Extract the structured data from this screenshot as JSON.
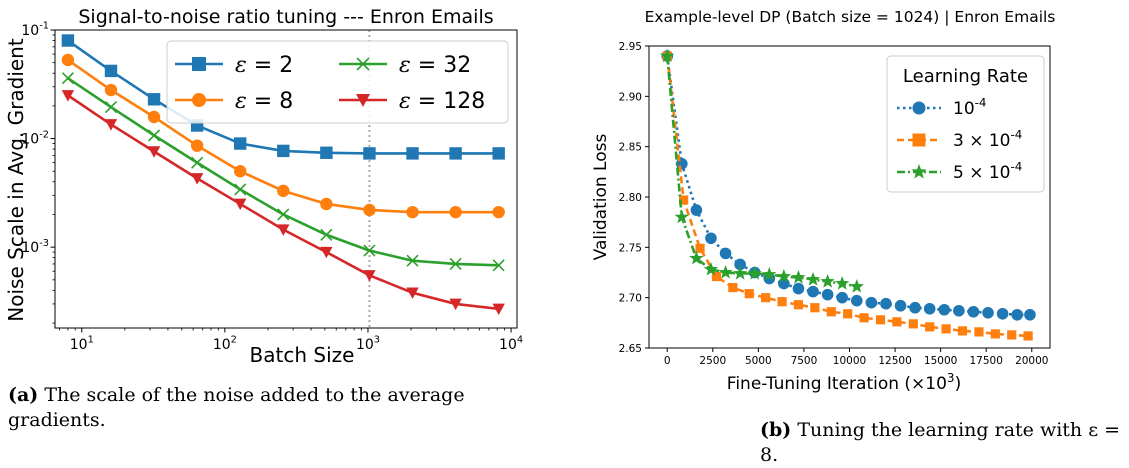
{
  "chart_data": [
    {
      "type": "line",
      "title": "Signal-to-noise ratio tuning --- Enron Emails",
      "xlabel": "Batch Size",
      "ylabel": "Noise Scale in Avg. Gradient",
      "xscale": "log",
      "yscale": "log",
      "xlim": [
        6.5,
        11000
      ],
      "ylim": [
        0.00018,
        0.1
      ],
      "xticks": [
        {
          "value": 10,
          "label": "10^1"
        },
        {
          "value": 100,
          "label": "10^2"
        },
        {
          "value": 1000,
          "label": "10^3"
        },
        {
          "value": 10000,
          "label": "10^4"
        }
      ],
      "yticks": [
        {
          "value": 0.001,
          "label": "10^-3"
        },
        {
          "value": 0.01,
          "label": "10^-2"
        },
        {
          "value": 0.1,
          "label": "10^-1"
        }
      ],
      "x": [
        8,
        16,
        32,
        64,
        128,
        256,
        512,
        1024,
        2048,
        4096,
        8192
      ],
      "vline": 1024,
      "legend_position": "top-right",
      "series": [
        {
          "name": "ε = 2",
          "marker": "square",
          "color": "#1f77b4",
          "values": [
            0.08,
            0.042,
            0.023,
            0.0132,
            0.009,
            0.0077,
            0.0074,
            0.0073,
            0.0073,
            0.0073,
            0.0073
          ]
        },
        {
          "name": "ε = 8",
          "marker": "circle",
          "color": "#ff7f0e",
          "values": [
            0.053,
            0.028,
            0.0158,
            0.0086,
            0.005,
            0.0033,
            0.0025,
            0.0022,
            0.0021,
            0.0021,
            0.0021
          ]
        },
        {
          "name": "ε = 32",
          "marker": "x",
          "color": "#2ca02c",
          "values": [
            0.036,
            0.0195,
            0.0107,
            0.006,
            0.0034,
            0.002,
            0.0013,
            0.00093,
            0.00075,
            0.0007,
            0.00068
          ]
        },
        {
          "name": "ε = 128",
          "marker": "triangle-down",
          "color": "#d62728",
          "values": [
            0.025,
            0.0135,
            0.0076,
            0.0043,
            0.0025,
            0.00145,
            0.0009,
            0.00055,
            0.00038,
            0.0003,
            0.00027
          ]
        }
      ]
    },
    {
      "type": "line",
      "title": "Example-level DP (Batch size = 1024) | Enron Emails",
      "xlabel": "Fine-Tuning Iteration (×10^3)",
      "ylabel": "Validation Loss",
      "xlim": [
        -1000,
        21000
      ],
      "ylim": [
        2.65,
        2.95
      ],
      "xticks": [
        0,
        2500,
        5000,
        7500,
        10000,
        12500,
        15000,
        17500,
        20000
      ],
      "yticks": [
        2.65,
        2.7,
        2.75,
        2.8,
        2.85,
        2.9,
        2.95
      ],
      "legend_title": "Learning Rate",
      "legend_position": "top-right",
      "series": [
        {
          "name": "10^-4",
          "marker": "circle",
          "linestyle": "dotted",
          "color": "#1f77b4",
          "x": [
            0,
            800,
            1600,
            2400,
            3200,
            4000,
            4800,
            5600,
            6400,
            7200,
            8000,
            8800,
            9600,
            10400,
            11200,
            12000,
            12800,
            13600,
            14400,
            15200,
            16000,
            16800,
            17600,
            18400,
            19200,
            19900
          ],
          "values": [
            2.94,
            2.833,
            2.787,
            2.759,
            2.744,
            2.733,
            2.725,
            2.719,
            2.714,
            2.709,
            2.706,
            2.703,
            2.7,
            2.697,
            2.695,
            2.694,
            2.692,
            2.69,
            2.689,
            2.688,
            2.687,
            2.686,
            2.685,
            2.684,
            2.683,
            2.683
          ]
        },
        {
          "name": "3 × 10^-4",
          "marker": "square",
          "linestyle": "dashed",
          "color": "#ff7f0e",
          "x": [
            0,
            900,
            1800,
            2700,
            3600,
            4500,
            5400,
            6300,
            7200,
            8100,
            9000,
            9900,
            10800,
            11700,
            12600,
            13500,
            14400,
            15300,
            16200,
            17100,
            18000,
            18900,
            19800
          ],
          "values": [
            2.94,
            2.797,
            2.749,
            2.721,
            2.71,
            2.704,
            2.7,
            2.696,
            2.693,
            2.69,
            2.686,
            2.684,
            2.68,
            2.678,
            2.676,
            2.674,
            2.671,
            2.669,
            2.667,
            2.666,
            2.664,
            2.663,
            2.662
          ]
        },
        {
          "name": "5 × 10^-4",
          "marker": "star",
          "linestyle": "dashdot",
          "color": "#2ca02c",
          "x": [
            0,
            800,
            1600,
            2400,
            3200,
            4000,
            4800,
            5600,
            6400,
            7200,
            8000,
            8800,
            9600,
            10400
          ],
          "values": [
            2.94,
            2.78,
            2.739,
            2.728,
            2.725,
            2.724,
            2.724,
            2.723,
            2.721,
            2.72,
            2.718,
            2.716,
            2.714,
            2.711
          ]
        }
      ]
    }
  ],
  "captions": {
    "a_label": "(a)",
    "a_text_line1": "The scale of the noise added to the average",
    "a_text_line2": "gradients.",
    "b_label": "(b)",
    "b_text": "Tuning the learning rate with ε = 8."
  }
}
